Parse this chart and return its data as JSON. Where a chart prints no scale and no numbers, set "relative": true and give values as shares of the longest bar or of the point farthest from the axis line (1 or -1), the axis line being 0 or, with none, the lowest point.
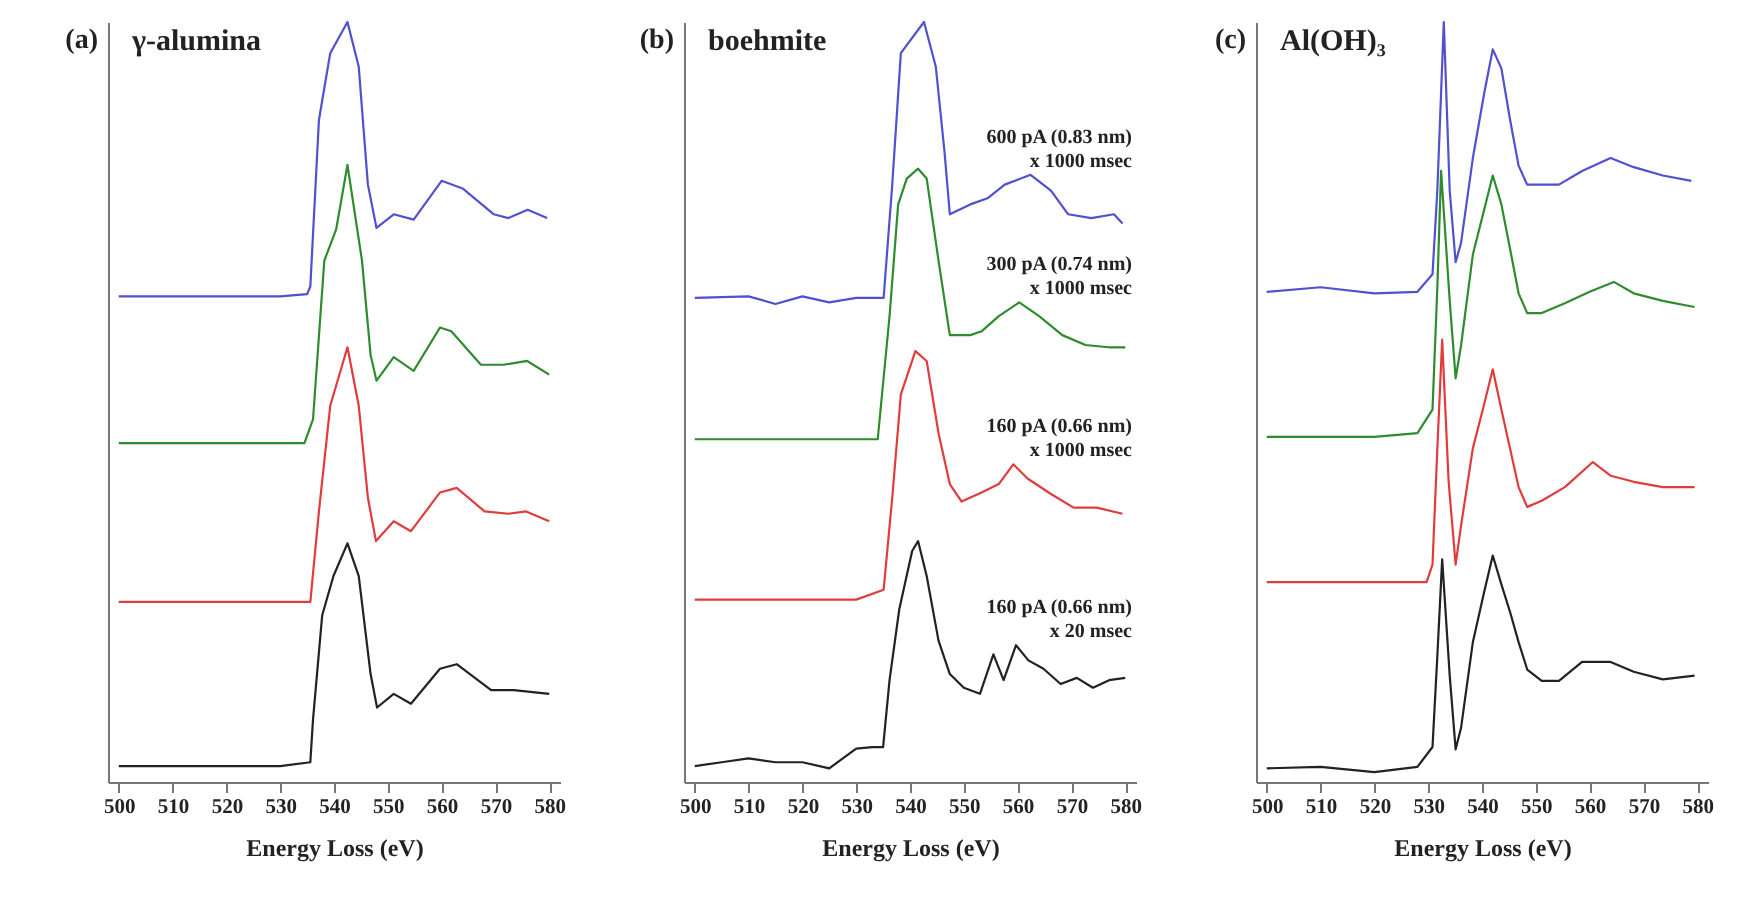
{
  "chart_data": [
    {
      "type": "line",
      "title": "γ-alumina",
      "annotations": [
        "(a)"
      ],
      "xlabel": "Energy Loss (eV)",
      "relative": true,
      "xlim": [
        498,
        582
      ],
      "xticks": [
        500,
        510,
        520,
        530,
        540,
        550,
        560,
        570,
        580
      ],
      "series": [
        {
          "color": "#5050d0",
          "x": [
            500,
            510,
            520,
            530,
            535,
            535.6,
            537.2,
            539.3,
            542.5,
            544.6,
            546.3,
            547.9,
            551.1,
            554.8,
            560,
            563.9,
            569.7,
            572.4,
            576,
            579.6
          ],
          "values": [
            0.639,
            0.639,
            0.639,
            0.639,
            0.642,
            0.652,
            0.871,
            0.959,
            1.0,
            0.941,
            0.786,
            0.729,
            0.747,
            0.74,
            0.791,
            0.781,
            0.747,
            0.742,
            0.753,
            0.742
          ]
        },
        {
          "color": "#2e8b2e",
          "x": [
            500,
            510,
            520,
            530,
            534.5,
            536.1,
            538.2,
            540.4,
            542.5,
            545.2,
            546.8,
            547.9,
            551.1,
            554.8,
            559.7,
            561.8,
            567.3,
            571.5,
            575.9,
            580
          ],
          "values": [
            0.446,
            0.446,
            0.446,
            0.446,
            0.446,
            0.477,
            0.686,
            0.727,
            0.812,
            0.686,
            0.562,
            0.528,
            0.559,
            0.541,
            0.598,
            0.593,
            0.549,
            0.549,
            0.554,
            0.536
          ]
        },
        {
          "color": "#e03c3c",
          "x": [
            500,
            510,
            520,
            530,
            535.6,
            537.2,
            539.3,
            542.5,
            544.6,
            546.3,
            547.8,
            551.1,
            554.3,
            559.7,
            562.8,
            568,
            572.4,
            575.7,
            580
          ],
          "values": [
            0.237,
            0.237,
            0.237,
            0.237,
            0.237,
            0.356,
            0.495,
            0.572,
            0.495,
            0.374,
            0.317,
            0.343,
            0.33,
            0.381,
            0.387,
            0.356,
            0.353,
            0.356,
            0.343
          ]
        },
        {
          "color": "#222222",
          "x": [
            500,
            510,
            520,
            530,
            535.6,
            536.1,
            537.8,
            539.9,
            542.5,
            544.6,
            546.8,
            548,
            551.1,
            554.3,
            559.7,
            562.8,
            569.2,
            573.4,
            580
          ],
          "values": [
            0.021,
            0.021,
            0.021,
            0.021,
            0.026,
            0.082,
            0.219,
            0.271,
            0.314,
            0.271,
            0.142,
            0.098,
            0.116,
            0.103,
            0.149,
            0.155,
            0.121,
            0.121,
            0.116
          ]
        }
      ]
    },
    {
      "type": "line",
      "title": "boehmite",
      "annotations": [
        "(b)"
      ],
      "xlabel": "Energy Loss (eV)",
      "relative": true,
      "xlim": [
        498,
        582
      ],
      "xticks": [
        500,
        510,
        520,
        530,
        540,
        550,
        560,
        570,
        580
      ],
      "series": [
        {
          "name": "600 pA (0.83 nm)\nx 1000 msec",
          "color": "#5050d0",
          "x": [
            500,
            510,
            515,
            520,
            525,
            530,
            535.1,
            536.7,
            538.3,
            542.6,
            544.8,
            546.4,
            547.4,
            551.2,
            554.4,
            557.6,
            562.4,
            566.2,
            569.4,
            573.7,
            577.9,
            579.5
          ],
          "values": [
            0.637,
            0.639,
            0.629,
            0.639,
            0.631,
            0.637,
            0.637,
            0.786,
            0.959,
            1.0,
            0.941,
            0.83,
            0.747,
            0.76,
            0.768,
            0.786,
            0.799,
            0.778,
            0.747,
            0.742,
            0.747,
            0.735
          ]
        },
        {
          "name": "300 pA (0.74 nm)\nx 1000 msec",
          "color": "#2e8b2e",
          "x": [
            500,
            510,
            520,
            530,
            534,
            536.2,
            537.8,
            539.4,
            541.5,
            543.1,
            545.3,
            547.4,
            551.2,
            553.3,
            556.5,
            560.3,
            564,
            568.3,
            572.6,
            576.9,
            580
          ],
          "values": [
            0.451,
            0.451,
            0.451,
            0.451,
            0.451,
            0.613,
            0.76,
            0.794,
            0.807,
            0.794,
            0.686,
            0.588,
            0.588,
            0.593,
            0.613,
            0.631,
            0.613,
            0.588,
            0.575,
            0.572,
            0.572
          ]
        },
        {
          "name": "160 pA (0.66 nm)\nx 1000 msec",
          "color": "#e03c3c",
          "x": [
            500,
            510,
            520,
            530,
            535.1,
            536.7,
            538.3,
            541,
            543.1,
            545.3,
            547.4,
            549.6,
            553.3,
            556.5,
            559.2,
            561.9,
            566.2,
            570.4,
            574.7,
            579.5
          ],
          "values": [
            0.24,
            0.24,
            0.24,
            0.24,
            0.253,
            0.374,
            0.51,
            0.567,
            0.554,
            0.459,
            0.392,
            0.369,
            0.381,
            0.392,
            0.418,
            0.399,
            0.379,
            0.361,
            0.361,
            0.353
          ]
        },
        {
          "name": "160 pA (0.66 nm)\nx 20 msec",
          "color": "#222222",
          "x": [
            500,
            505,
            510,
            515,
            520,
            525,
            530,
            533,
            535,
            536.2,
            538,
            540.4,
            541.5,
            543.1,
            545.3,
            547.4,
            550,
            553,
            555.5,
            557.4,
            559.7,
            562,
            564.8,
            568,
            571,
            574,
            577,
            580
          ],
          "values": [
            0.021,
            0.026,
            0.031,
            0.026,
            0.026,
            0.018,
            0.044,
            0.046,
            0.046,
            0.134,
            0.227,
            0.304,
            0.317,
            0.271,
            0.186,
            0.142,
            0.124,
            0.116,
            0.168,
            0.134,
            0.18,
            0.16,
            0.149,
            0.129,
            0.137,
            0.124,
            0.134,
            0.137
          ]
        }
      ]
    },
    {
      "type": "line",
      "title": "Al(OH)₃",
      "annotations": [
        "(c)"
      ],
      "xlabel": "Energy Loss (eV)",
      "relative": true,
      "xlim": [
        498,
        582
      ],
      "xticks": [
        500,
        510,
        520,
        530,
        540,
        550,
        560,
        570,
        580
      ],
      "series": [
        {
          "color": "#5050d0",
          "x": [
            500,
            510,
            520,
            528,
            530.8,
            531.7,
            532.9,
            534,
            535.1,
            536.1,
            538.3,
            540.4,
            542,
            543.6,
            545.2,
            546.8,
            548.4,
            551.1,
            554.3,
            558.6,
            563.9,
            568.2,
            573.6,
            578.9
          ],
          "values": [
            0.645,
            0.651,
            0.643,
            0.645,
            0.668,
            0.778,
            1.0,
            0.778,
            0.684,
            0.709,
            0.821,
            0.906,
            0.964,
            0.939,
            0.872,
            0.811,
            0.786,
            0.786,
            0.786,
            0.804,
            0.821,
            0.809,
            0.798,
            0.791
          ]
        },
        {
          "color": "#2e8b2e",
          "x": [
            500,
            510,
            520,
            528,
            530.8,
            531.7,
            532.4,
            534,
            535.1,
            536.1,
            538.3,
            540.4,
            542,
            543.6,
            545.2,
            546.8,
            548.4,
            551.1,
            555.4,
            560,
            564.5,
            568.2,
            573.6,
            579.5
          ],
          "values": [
            0.454,
            0.454,
            0.454,
            0.459,
            0.49,
            0.651,
            0.804,
            0.633,
            0.531,
            0.574,
            0.694,
            0.753,
            0.798,
            0.76,
            0.702,
            0.643,
            0.617,
            0.617,
            0.63,
            0.645,
            0.658,
            0.643,
            0.633,
            0.625
          ]
        },
        {
          "color": "#e03c3c",
          "x": [
            500,
            510,
            520,
            529.7,
            530.8,
            531.7,
            532.6,
            533.8,
            535.1,
            536.1,
            538.3,
            540.4,
            542,
            543.6,
            545.2,
            546.8,
            548.4,
            551.1,
            555.4,
            560.6,
            563.9,
            568.2,
            573.6,
            579.5
          ],
          "values": [
            0.263,
            0.263,
            0.263,
            0.263,
            0.286,
            0.439,
            0.582,
            0.395,
            0.286,
            0.337,
            0.439,
            0.497,
            0.543,
            0.49,
            0.439,
            0.388,
            0.362,
            0.37,
            0.388,
            0.421,
            0.403,
            0.395,
            0.388,
            0.388
          ]
        },
        {
          "color": "#222222",
          "x": [
            500,
            510,
            520,
            528,
            530.8,
            531.7,
            532.6,
            534,
            535.1,
            536.1,
            538.3,
            540.4,
            542,
            543.6,
            545.2,
            546.8,
            548.4,
            551.1,
            554.3,
            558.6,
            563.9,
            568.2,
            573.6,
            579.5
          ],
          "values": [
            0.018,
            0.02,
            0.013,
            0.02,
            0.046,
            0.166,
            0.293,
            0.14,
            0.043,
            0.071,
            0.184,
            0.25,
            0.298,
            0.26,
            0.224,
            0.184,
            0.148,
            0.133,
            0.133,
            0.158,
            0.158,
            0.145,
            0.135,
            0.14
          ]
        }
      ]
    }
  ]
}
